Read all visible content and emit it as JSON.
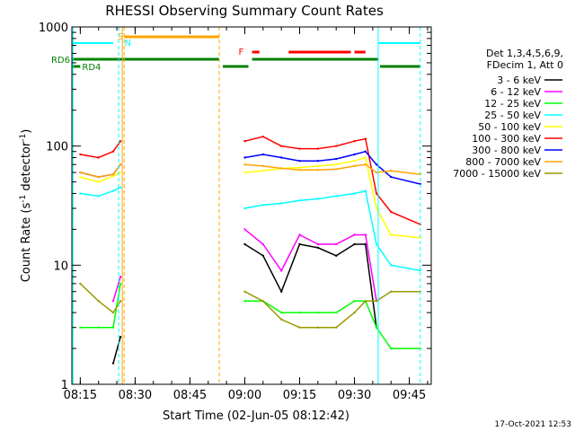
{
  "chart_data": {
    "type": "line",
    "title": "RHESSI Observing Summary Count Rates",
    "xlabel": "Start Time (02-Jun-05 08:12:42)",
    "ylabel": "Count Rate (s⁻¹ detector⁻¹)",
    "ylabel_main": "Count Rate (s",
    "ylabel_sup1": "-1",
    "ylabel_mid": " detector",
    "ylabel_sup2": "-1",
    "ylabel_end": ")",
    "y_scale": "log",
    "ylim": [
      1,
      1000
    ],
    "y_ticks": [
      1,
      10,
      100,
      1000
    ],
    "xlim": [
      "08:12:42",
      "09:51:00"
    ],
    "x_ticks": [
      "08:15",
      "08:30",
      "08:45",
      "09:00",
      "09:15",
      "09:30",
      "09:45"
    ],
    "timestamp": "17-Oct-2021 12:53",
    "legend_header": [
      "Det 1,3,4,5,6,9,",
      "FDecim 1, Att 0"
    ],
    "grid": false,
    "legend_position": "right",
    "series": [
      {
        "name": "3 - 6 keV",
        "color": "#000000",
        "x": [
          "08:15",
          "08:20",
          "08:24",
          "08:26",
          "08:27",
          "08:58",
          "09:00",
          "09:05",
          "09:10",
          "09:15",
          "09:20",
          "09:25",
          "09:30",
          "09:33",
          "09:36",
          "09:40",
          "09:48"
        ],
        "values": [
          null,
          null,
          1.5,
          2.5,
          null,
          null,
          15,
          12,
          6,
          15,
          14,
          12,
          15,
          15,
          3,
          null,
          null
        ]
      },
      {
        "name": "6 - 12 keV",
        "color": "#ff00ff",
        "x": [
          "08:15",
          "08:20",
          "08:24",
          "08:26",
          "08:27",
          "08:58",
          "09:00",
          "09:05",
          "09:10",
          "09:15",
          "09:20",
          "09:25",
          "09:30",
          "09:33",
          "09:36",
          "09:40",
          "09:48"
        ],
        "values": [
          null,
          null,
          5,
          8,
          null,
          null,
          20,
          15,
          9,
          18,
          15,
          15,
          18,
          18,
          5,
          null,
          null
        ]
      },
      {
        "name": "12 - 25 keV",
        "color": "#00ff00",
        "x": [
          "08:15",
          "08:20",
          "08:24",
          "08:26",
          "08:27",
          "08:58",
          "09:00",
          "09:05",
          "09:10",
          "09:15",
          "09:20",
          "09:25",
          "09:30",
          "09:33",
          "09:36",
          "09:40",
          "09:48"
        ],
        "values": [
          3,
          3,
          3,
          7,
          null,
          null,
          5,
          5,
          4,
          4,
          4,
          4,
          5,
          5,
          3,
          2,
          2
        ]
      },
      {
        "name": "25 - 50 keV",
        "color": "#00ffff",
        "x": [
          "08:15",
          "08:20",
          "08:24",
          "08:26",
          "08:27",
          "08:58",
          "09:00",
          "09:05",
          "09:10",
          "09:15",
          "09:20",
          "09:25",
          "09:30",
          "09:33",
          "09:36",
          "09:40",
          "09:48"
        ],
        "values": [
          40,
          38,
          42,
          45,
          null,
          null,
          30,
          32,
          33,
          35,
          36,
          38,
          40,
          42,
          15,
          10,
          9
        ]
      },
      {
        "name": "50 - 100 keV",
        "color": "#ffff00",
        "x": [
          "08:15",
          "08:20",
          "08:24",
          "08:26",
          "08:27",
          "08:58",
          "09:00",
          "09:05",
          "09:10",
          "09:15",
          "09:20",
          "09:25",
          "09:30",
          "09:33",
          "09:36",
          "09:40",
          "09:48"
        ],
        "values": [
          55,
          50,
          56,
          60,
          null,
          null,
          60,
          62,
          65,
          66,
          68,
          70,
          75,
          80,
          30,
          18,
          17
        ]
      },
      {
        "name": "100 - 300 keV",
        "color": "#ff0000",
        "x": [
          "08:15",
          "08:20",
          "08:24",
          "08:26",
          "08:27",
          "08:58",
          "09:00",
          "09:05",
          "09:10",
          "09:15",
          "09:20",
          "09:25",
          "09:30",
          "09:33",
          "09:36",
          "09:40",
          "09:48"
        ],
        "values": [
          85,
          80,
          90,
          110,
          null,
          null,
          110,
          120,
          100,
          95,
          95,
          100,
          110,
          115,
          40,
          28,
          22
        ]
      },
      {
        "name": "300 - 800 keV",
        "color": "#0000ff",
        "x": [
          "08:15",
          "08:20",
          "08:24",
          "08:26",
          "08:27",
          "08:58",
          "09:00",
          "09:05",
          "09:10",
          "09:15",
          "09:20",
          "09:25",
          "09:30",
          "09:33",
          "09:36",
          "09:40",
          "09:48"
        ],
        "values": [
          60,
          55,
          58,
          70,
          null,
          null,
          80,
          85,
          80,
          75,
          75,
          78,
          85,
          90,
          70,
          55,
          48
        ]
      },
      {
        "name": "800 - 7000 keV",
        "color": "#ffa500",
        "x": [
          "08:15",
          "08:20",
          "08:24",
          "08:26",
          "08:27",
          "08:58",
          "09:00",
          "09:05",
          "09:10",
          "09:15",
          "09:20",
          "09:25",
          "09:30",
          "09:33",
          "09:36",
          "09:40",
          "09:48"
        ],
        "values": [
          60,
          55,
          58,
          70,
          null,
          null,
          70,
          68,
          65,
          63,
          63,
          64,
          68,
          70,
          60,
          62,
          58
        ]
      },
      {
        "name": "7000 - 15000 keV",
        "color": "#999900",
        "x": [
          "08:15",
          "08:20",
          "08:24",
          "08:26",
          "08:27",
          "08:58",
          "09:00",
          "09:05",
          "09:10",
          "09:15",
          "09:20",
          "09:25",
          "09:30",
          "09:33",
          "09:36",
          "09:40",
          "09:48"
        ],
        "values": [
          7,
          5,
          4,
          5,
          null,
          null,
          6,
          5,
          3.5,
          3,
          3,
          3,
          4,
          5,
          5,
          6,
          6
        ]
      }
    ],
    "annotations": [
      {
        "text": "S",
        "color": "#ffa500"
      },
      {
        "text": "N",
        "color": "#00ffff"
      },
      {
        "text": "F",
        "color": "#ff0000"
      },
      {
        "text": "RD6",
        "color": "#008000"
      },
      {
        "text": "RD4",
        "color": "#008000"
      }
    ]
  }
}
